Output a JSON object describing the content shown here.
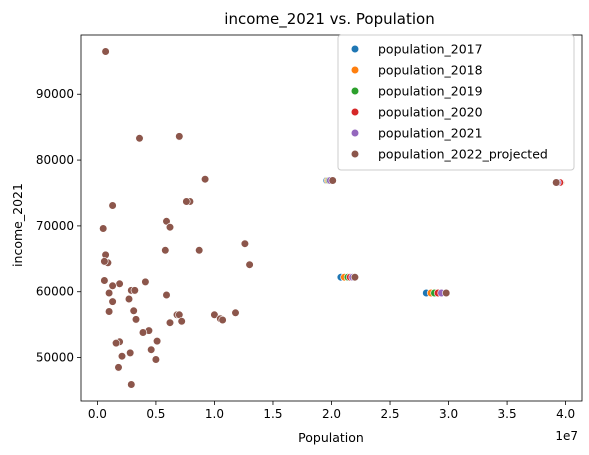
{
  "chart_data": {
    "type": "scatter",
    "title": "income_2021 vs. Population",
    "xlabel": "Population",
    "ylabel": "income_2021",
    "x_offset_label": "1e7",
    "xlim": [
      -1400000,
      41400000
    ],
    "ylim": [
      43400,
      99000
    ],
    "x_ticks": [
      0,
      5000000,
      10000000,
      15000000,
      20000000,
      25000000,
      30000000,
      35000000,
      40000000
    ],
    "x_tick_labels": [
      "0.0",
      "0.5",
      "1.0",
      "1.5",
      "2.0",
      "2.5",
      "3.0",
      "3.5",
      "4.0"
    ],
    "y_ticks": [
      50000,
      60000,
      70000,
      80000,
      90000
    ],
    "y_tick_labels": [
      "50000",
      "60000",
      "70000",
      "80000",
      "90000"
    ],
    "grid": false,
    "legend_position": "top-right",
    "series": [
      {
        "name": "population_2017",
        "color": "#1f77b4",
        "values": [
          [
            39500000,
            76600
          ],
          [
            28100000,
            59800
          ],
          [
            20800000,
            62200
          ],
          [
            19600000,
            76900
          ]
        ]
      },
      {
        "name": "population_2018",
        "color": "#ff7f0e",
        "values": [
          [
            39600000,
            76600
          ],
          [
            28500000,
            59800
          ],
          [
            21100000,
            62200
          ],
          [
            19700000,
            76900
          ]
        ]
      },
      {
        "name": "population_2019",
        "color": "#2ca02c",
        "values": [
          [
            39550000,
            76600
          ],
          [
            28800000,
            59800
          ],
          [
            21400000,
            62200
          ],
          [
            19800000,
            76900
          ]
        ]
      },
      {
        "name": "population_2020",
        "color": "#d62728",
        "values": [
          [
            39500000,
            76600
          ],
          [
            29100000,
            59800
          ],
          [
            21600000,
            62200
          ],
          [
            20000000,
            76900
          ]
        ]
      },
      {
        "name": "population_2021",
        "color": "#9467bd",
        "values": [
          [
            39300000,
            76600
          ],
          [
            29400000,
            59800
          ],
          [
            21800000,
            62200
          ],
          [
            19900000,
            76900
          ]
        ]
      },
      {
        "name": "population_2022_projected",
        "color": "#8c564b",
        "values": [
          [
            39200000,
            76600
          ],
          [
            29800000,
            59800
          ],
          [
            22000000,
            62200
          ],
          [
            20100000,
            76900
          ],
          [
            700000,
            96500
          ],
          [
            9200000,
            77100
          ],
          [
            7000000,
            83600
          ],
          [
            3600000,
            83300
          ],
          [
            7900000,
            73700
          ],
          [
            7600000,
            73700
          ],
          [
            1300000,
            73100
          ],
          [
            5900000,
            70700
          ],
          [
            500000,
            69600
          ],
          [
            6200000,
            69800
          ],
          [
            12600000,
            67300
          ],
          [
            8700000,
            66300
          ],
          [
            5800000,
            66300
          ],
          [
            700000,
            65600
          ],
          [
            900000,
            64400
          ],
          [
            600000,
            64600
          ],
          [
            13000000,
            64100
          ],
          [
            600000,
            61700
          ],
          [
            4100000,
            61500
          ],
          [
            1900000,
            61200
          ],
          [
            1300000,
            60900
          ],
          [
            2900000,
            60200
          ],
          [
            3200000,
            60200
          ],
          [
            5900000,
            59500
          ],
          [
            1000000,
            59800
          ],
          [
            2700000,
            58900
          ],
          [
            1300000,
            58500
          ],
          [
            3100000,
            57100
          ],
          [
            1000000,
            57000
          ],
          [
            6800000,
            56500
          ],
          [
            7000000,
            56500
          ],
          [
            11800000,
            56800
          ],
          [
            10000000,
            56500
          ],
          [
            10500000,
            55900
          ],
          [
            10700000,
            55700
          ],
          [
            7200000,
            55500
          ],
          [
            6200000,
            55300
          ],
          [
            3300000,
            55800
          ],
          [
            4400000,
            54100
          ],
          [
            3900000,
            53800
          ],
          [
            1900000,
            52400
          ],
          [
            1600000,
            52200
          ],
          [
            5100000,
            52500
          ],
          [
            4600000,
            51200
          ],
          [
            2800000,
            50700
          ],
          [
            2100000,
            50200
          ],
          [
            5000000,
            49700
          ],
          [
            1800000,
            48500
          ],
          [
            2900000,
            45900
          ]
        ]
      }
    ]
  }
}
